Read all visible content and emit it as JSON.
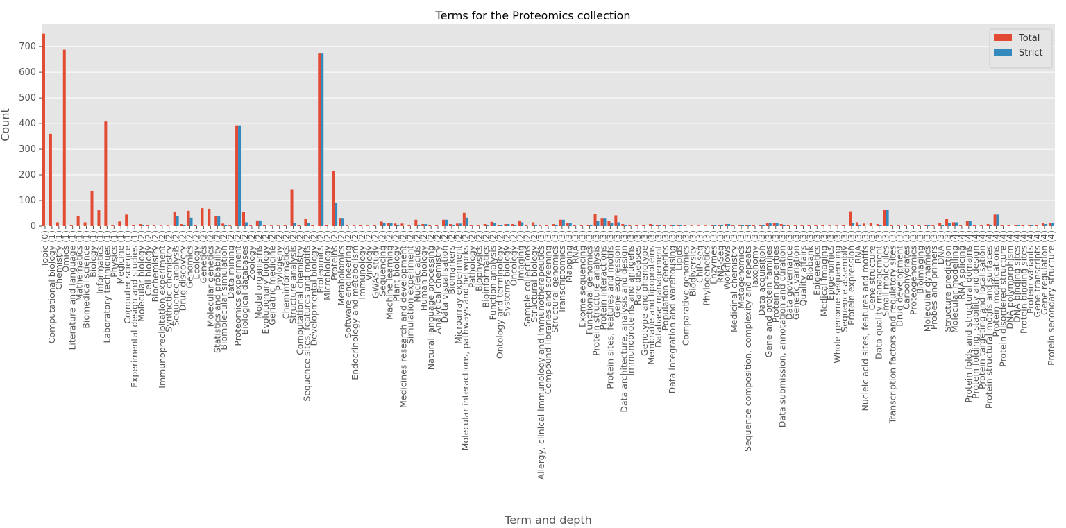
{
  "chart_data": {
    "type": "bar",
    "title": "Terms for the Proteomics collection",
    "x_label": "Term and depth",
    "y_label": "Count",
    "categories": [
      "Topic (0)",
      "Computational biology (1)",
      "Chemistry (1)",
      "Omics (1)",
      "Literature and language (1)",
      "Mathematics (1)",
      "Biomedical science (1)",
      "Biology (1)",
      "Informatics (1)",
      "Laboratory techniques (1)",
      "Physics (1)",
      "Medicine (1)",
      "Computer science (1)",
      "Experimental design and studies (1)",
      "Molecular biology (2)",
      "Cell biology (2)",
      "Biochemistry (2)",
      "Immunoprecipitation experiment (2)",
      "Synthetic chemistry (2)",
      "Sequence analysis (2)",
      "Drug discovery (2)",
      "Genomics (2)",
      "Ecology (2)",
      "Genetics (2)",
      "Molecular genetics (2)",
      "Statistics and probability (2)",
      "Biomolecular simulation (2)",
      "Data mining (2)",
      "Proteomics experiment (2)",
      "Biological databases (2)",
      "Zoology (2)",
      "Model organisms (2)",
      "Evolutionary biology (2)",
      "Geriatric medicine (2)",
      "Phylogeny (2)",
      "Cheminformatics (2)",
      "Structure analysis (2)",
      "Computational chemistry (2)",
      "Sequence sites, features and motifs (2)",
      "Developmental biology (2)",
      "Proteomics (2)",
      "Microbiology (2)",
      "Proteins (2)",
      "Metabolomics (2)",
      "Software engineering (2)",
      "Endocrinology and metabolism (2)",
      "Immunology (2)",
      "Virology (2)",
      "GWAS study (2)",
      "Sequencing (2)",
      "Machine learning (2)",
      "Plant biology (2)",
      "Medicines research and development (2)",
      "Simulation experiment (2)",
      "Nucleic acids (2)",
      "Human biology (2)",
      "Natural language processing (2)",
      "Analytical chemistry (2)",
      "Data visualisation (2)",
      "Biomarkers (2)",
      "Microarray experiment (2)",
      "Molecular interactions, pathways and networks (2)",
      "Pathology (2)",
      "Biophysics (2)",
      "Bioinformatics (2)",
      "Function analysis (2)",
      "Ontology and terminology (2)",
      "Systems biology (2)",
      "Oncology (2)",
      "Imaging (2)",
      "Sample collections (2)",
      "Structural biology (2)",
      "Allergy, clinical immunology and immunotherapeutics (3)",
      "Compound libraries and screening (3)",
      "Structural genomics (3)",
      "Transcriptomics (3)",
      "Mapping (3)",
      "RNA (3)",
      "Exome sequencing (3)",
      "Functional genomics (3)",
      "Protein structure analysis (3)",
      "Protein interactions (3)",
      "Protein sites, features and motifs (3)",
      "Gene expression (3)",
      "Data architecture, analysis and design (3)",
      "Immunoproteins and antigens (3)",
      "Rare diseases (3)",
      "Genotype and phenotype (3)",
      "Membrane and lipoproteins (3)",
      "Database management (3)",
      "Population genetics (3)",
      "Data integration and warehousing (3)",
      "Lipids (3)",
      "Comparative genomics (3)",
      "Biodiversity (3)",
      "ChIP-seq (3)",
      "Phylogenetics (3)",
      "Enzymes (3)",
      "RNA-Seq (3)",
      "Workflows (3)",
      "Medicinal chemistry (3)",
      "Metagenomics (3)",
      "Sequence composition, complexity and repeats (3)",
      "Taxonomy (3)",
      "Data acquisition (3)",
      "Gene and protein families (3)",
      "Protein properties (3)",
      "Data submission, annotation and curation (3)",
      "Data governance (3)",
      "Genetic variation (3)",
      "Quality affairs (3)",
      "Biobank (3)",
      "Epigenetics (3)",
      "Medical imaging (3)",
      "Epigenomics (3)",
      "Whole genome sequencing (3)",
      "Sequence assembly (3)",
      "Protein expression (3)",
      "RNA (3)",
      "Nucleic acid sites, features and motifs (3)",
      "Gene structure (3)",
      "Data quality management (3)",
      "Small molecules (3)",
      "Transcription factors and regulatory sites (3)",
      "Drug development (3)",
      "Carbohydrates (3)",
      "Proteogenomics (3)",
      "Bioimaging (3)",
      "Molecular dynamics (3)",
      "Probes and primers (3)",
      "DNA (3)",
      "Structure prediction (3)",
      "Molecular modelling (4)",
      "RNA splicing (4)",
      "Protein folds and structural domains (4)",
      "Protein folding, stability and design (4)",
      "Protein targeting and localisation (4)",
      "Protein structural motifs and surfaces (4)",
      "Protein modifications (4)",
      "Protein disordered structure (4)",
      "DNA polymorphism (4)",
      "DNA binding sites (4)",
      "Protein binding sites (4)",
      "Protein variants (4)",
      "Gene transcripts (4)",
      "Gene regulation (4)",
      "Protein secondary structure (4)"
    ],
    "series": [
      {
        "name": "Total",
        "color": "#E24A33",
        "values": [
          750,
          360,
          15,
          688,
          5,
          38,
          15,
          138,
          62,
          408,
          3,
          18,
          45,
          3,
          8,
          5,
          3,
          2,
          2,
          57,
          8,
          60,
          5,
          70,
          68,
          38,
          10,
          3,
          393,
          55,
          5,
          22,
          5,
          2,
          2,
          3,
          142,
          3,
          30,
          3,
          673,
          3,
          215,
          32,
          5,
          3,
          3,
          2,
          3,
          18,
          12,
          10,
          10,
          3,
          25,
          8,
          3,
          5,
          25,
          8,
          10,
          52,
          5,
          3,
          8,
          17,
          5,
          8,
          8,
          22,
          5,
          15,
          3,
          3,
          8,
          25,
          12,
          3,
          3,
          5,
          48,
          32,
          20,
          42,
          8,
          3,
          3,
          3,
          8,
          5,
          3,
          5,
          5,
          3,
          2,
          2,
          2,
          5,
          5,
          8,
          3,
          3,
          5,
          3,
          5,
          12,
          12,
          8,
          3,
          5,
          3,
          5,
          3,
          3,
          2,
          2,
          3,
          58,
          15,
          10,
          12,
          8,
          65,
          5,
          3,
          3,
          3,
          3,
          5,
          3,
          12,
          28,
          15,
          3,
          20,
          3,
          3,
          8,
          45,
          3,
          3,
          5,
          3,
          3,
          3,
          12,
          12
        ]
      },
      {
        "name": "Strict",
        "color": "#348ABD",
        "values": [
          0,
          0,
          0,
          0,
          0,
          0,
          0,
          0,
          0,
          0,
          0,
          0,
          0,
          0,
          3,
          0,
          0,
          0,
          0,
          40,
          3,
          33,
          0,
          0,
          0,
          38,
          3,
          0,
          393,
          15,
          0,
          22,
          0,
          0,
          0,
          0,
          12,
          0,
          12,
          0,
          673,
          0,
          90,
          32,
          0,
          0,
          0,
          0,
          0,
          12,
          12,
          5,
          0,
          0,
          5,
          8,
          0,
          0,
          25,
          3,
          10,
          33,
          0,
          0,
          5,
          12,
          3,
          8,
          3,
          15,
          0,
          5,
          0,
          0,
          3,
          25,
          12,
          0,
          0,
          3,
          20,
          32,
          12,
          15,
          5,
          0,
          0,
          0,
          3,
          5,
          0,
          5,
          3,
          0,
          0,
          0,
          0,
          5,
          5,
          8,
          0,
          3,
          3,
          0,
          5,
          12,
          12,
          3,
          0,
          0,
          0,
          0,
          0,
          0,
          0,
          0,
          0,
          12,
          5,
          0,
          0,
          5,
          65,
          0,
          0,
          0,
          0,
          0,
          5,
          0,
          3,
          12,
          15,
          0,
          20,
          0,
          0,
          3,
          45,
          0,
          0,
          3,
          0,
          3,
          0,
          8,
          12
        ]
      }
    ],
    "ylim": [
      0,
      787
    ],
    "yticks": [
      0,
      100,
      200,
      300,
      400,
      500,
      600,
      700
    ],
    "grid": true,
    "legend": "upper right"
  }
}
